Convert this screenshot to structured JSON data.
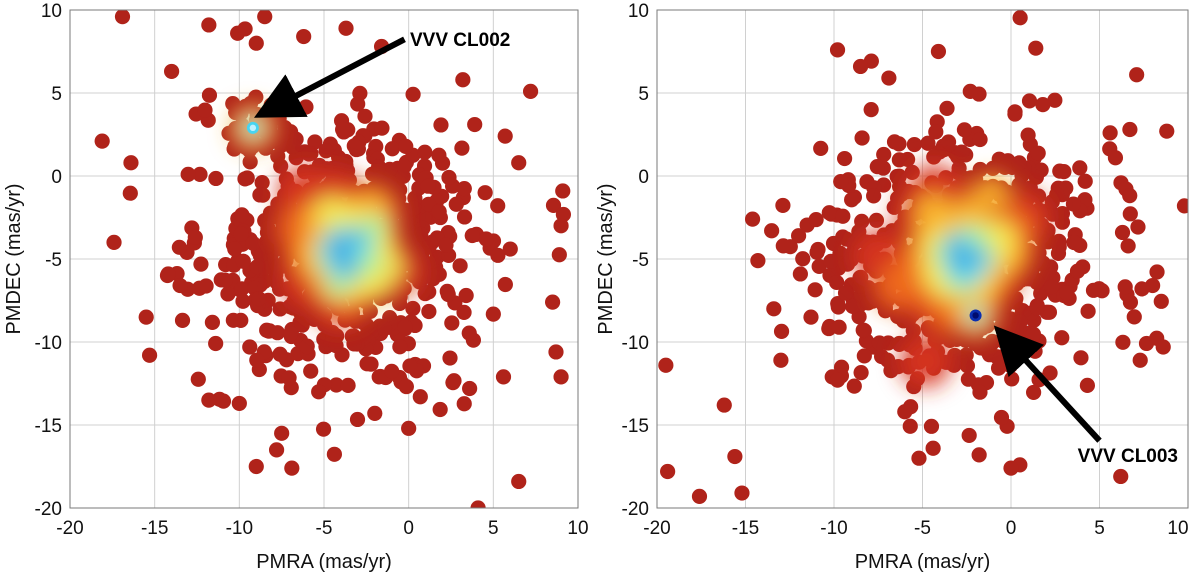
{
  "chart_data": [
    {
      "type": "scatter",
      "title": "",
      "xlabel": "PMRA (mas/yr)",
      "ylabel": "PMDEC (mas/yr)",
      "xlim": [
        -20,
        10
      ],
      "ylim": [
        -20,
        10
      ],
      "x_ticks": [
        "-20",
        "-15",
        "-10",
        "-5",
        "0",
        "5",
        "10"
      ],
      "y_ticks": [
        "10",
        "5",
        "0",
        "-5",
        "-10",
        "-15",
        "-20"
      ],
      "grid": true,
      "density_colormap": "jet (dark red = low density, blue = high density)",
      "field_centroid": [
        -3.8,
        -4.5
      ],
      "cluster": {
        "name": "VVV CL002",
        "pmra": -9.2,
        "pmdec": 2.9
      },
      "annotation": {
        "label": "VVV CL002",
        "arrow_from": [
          -0.5,
          7.8
        ],
        "arrow_to": [
          -8.6,
          3.1
        ]
      },
      "outliers": [
        [
          -16.9,
          9.6
        ],
        [
          -8.5,
          9.6
        ],
        [
          -3.7,
          8.9
        ],
        [
          -11.8,
          9.1
        ],
        [
          -10.1,
          8.6
        ],
        [
          -9.0,
          8.0
        ],
        [
          -6.2,
          8.4
        ],
        [
          -14.0,
          6.3
        ],
        [
          -18.1,
          2.1
        ],
        [
          -17.4,
          -4.0
        ],
        [
          -15.3,
          -10.8
        ],
        [
          -11.8,
          -13.5
        ],
        [
          -10.0,
          -13.7
        ],
        [
          -9.0,
          -17.5
        ],
        [
          -7.8,
          -16.5
        ],
        [
          -7.5,
          -15.5
        ],
        [
          -6.9,
          -17.6
        ],
        [
          -2.0,
          -14.3
        ],
        [
          0.0,
          -15.2
        ],
        [
          4.1,
          -20.0
        ],
        [
          6.5,
          -18.4
        ],
        [
          9.0,
          -12.1
        ],
        [
          8.7,
          -10.6
        ],
        [
          9.1,
          -0.9
        ],
        [
          9.0,
          -3.0
        ],
        [
          8.5,
          -7.6
        ],
        [
          6.5,
          0.8
        ],
        [
          7.2,
          5.1
        ],
        [
          5.7,
          2.4
        ],
        [
          3.9,
          3.1
        ],
        [
          3.2,
          5.8
        ],
        [
          -1.6,
          7.8
        ],
        [
          6.0,
          -4.4
        ],
        [
          -16.4,
          0.8
        ],
        [
          -13.5,
          -6.6
        ],
        [
          -12.6,
          -3.7
        ],
        [
          -15.5,
          -8.5
        ],
        [
          -14.2,
          -5.9
        ],
        [
          5.6,
          -12.1
        ],
        [
          3.6,
          -12.8
        ]
      ]
    },
    {
      "type": "scatter",
      "title": "",
      "xlabel": "PMRA (mas/yr)",
      "ylabel": "PMDEC (mas/yr)",
      "xlim": [
        -20,
        10
      ],
      "ylim": [
        -20,
        10
      ],
      "x_ticks": [
        "-20",
        "-15",
        "-10",
        "-5",
        "0",
        "5",
        "10"
      ],
      "y_ticks": [
        "10",
        "5",
        "0",
        "-5",
        "-10",
        "-15",
        "-20"
      ],
      "grid": true,
      "density_colormap": "jet (dark red = low density, blue = high density)",
      "field_centroid": [
        -2.8,
        -5.0
      ],
      "cluster": {
        "name": "VVV CL003",
        "pmra": -2.0,
        "pmdec": -8.4
      },
      "annotation": {
        "label": "VVV CL003",
        "arrow_from": [
          5.0,
          -15.5
        ],
        "arrow_to": [
          -1.5,
          -9.2
        ]
      },
      "outliers": [
        [
          -19.5,
          -11.4
        ],
        [
          -19.4,
          -17.8
        ],
        [
          -17.6,
          -19.3
        ],
        [
          -16.2,
          -13.8
        ],
        [
          -15.6,
          -16.9
        ],
        [
          -15.2,
          -19.1
        ],
        [
          -14.6,
          -2.6
        ],
        [
          -14.3,
          -5.1
        ],
        [
          -13.4,
          -8.0
        ],
        [
          -13.0,
          -11.1
        ],
        [
          -12.0,
          -3.6
        ],
        [
          -11.9,
          -5.9
        ],
        [
          -10.1,
          -12.1
        ],
        [
          -9.8,
          -12.3
        ],
        [
          -9.8,
          7.6
        ],
        [
          -8.5,
          6.6
        ],
        [
          -7.9,
          4.0
        ],
        [
          -6.9,
          5.9
        ],
        [
          -6.0,
          -6.2
        ],
        [
          -5.2,
          -17.0
        ],
        [
          -4.4,
          -16.4
        ],
        [
          -4.1,
          7.5
        ],
        [
          -2.3,
          5.1
        ],
        [
          -1.8,
          -16.8
        ],
        [
          0.5,
          -17.4
        ],
        [
          0.0,
          -17.6
        ],
        [
          1.4,
          7.7
        ],
        [
          1.8,
          4.3
        ],
        [
          5.6,
          2.6
        ],
        [
          5.9,
          1.1
        ],
        [
          7.1,
          6.1
        ],
        [
          8.8,
          2.7
        ],
        [
          9.8,
          -1.8
        ],
        [
          8.6,
          -10.3
        ],
        [
          7.3,
          -11.1
        ],
        [
          6.2,
          -18.1
        ],
        [
          7.4,
          -6.8
        ],
        [
          6.3,
          -3.4
        ],
        [
          -6.0,
          -14.2
        ],
        [
          -11.3,
          -8.5
        ]
      ]
    }
  ]
}
